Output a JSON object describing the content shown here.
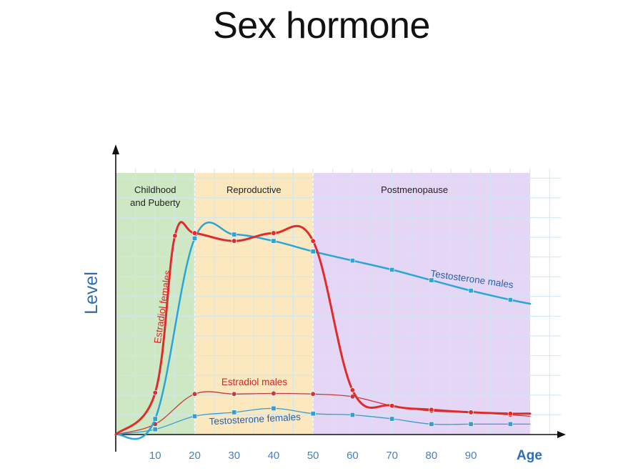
{
  "title": "Sex hormone",
  "chart_data": {
    "type": "line",
    "title": "Sex hormone",
    "xlabel": "Age",
    "ylabel": "Level",
    "xlim": [
      0,
      105
    ],
    "ylim": [
      0,
      100
    ],
    "x_ticks": [
      10,
      20,
      30,
      40,
      50,
      60,
      70,
      80,
      90
    ],
    "grid": true,
    "phases": [
      {
        "label_lines": [
          "Childhood",
          "and Puberty"
        ],
        "from": 0,
        "to": 20,
        "color": "#cfe8c4"
      },
      {
        "label_lines": [
          "Reproductive"
        ],
        "from": 20,
        "to": 50,
        "color": "#fbe8bf"
      },
      {
        "label_lines": [
          "Postmenopause"
        ],
        "from": 50,
        "to": 105,
        "color": "#e6d6f6"
      }
    ],
    "series": [
      {
        "name": "Estradiol females",
        "color": "#e02b2b",
        "width": 3,
        "x": [
          0,
          10,
          15,
          20,
          30,
          40,
          50,
          60,
          70,
          80,
          90,
          100,
          105
        ],
        "y": [
          0,
          16,
          76,
          77,
          74,
          77,
          74,
          17,
          11,
          9.5,
          8.5,
          8,
          8
        ]
      },
      {
        "name": "Testosterone males",
        "color": "#2aa5d8",
        "width": 2.5,
        "x": [
          0,
          10,
          20,
          30,
          40,
          50,
          60,
          70,
          80,
          90,
          100,
          105
        ],
        "y": [
          0,
          6,
          75,
          76.5,
          74,
          70,
          66.5,
          63,
          59,
          55,
          51.5,
          50
        ]
      },
      {
        "name": "Estradiol males",
        "color": "#c43a3a",
        "width": 1.3,
        "x": [
          0,
          10,
          20,
          30,
          40,
          50,
          60,
          70,
          80,
          90,
          100,
          105
        ],
        "y": [
          0,
          4,
          15.5,
          15.5,
          15.7,
          15.5,
          14.5,
          11,
          9,
          8.5,
          7.5,
          7
        ]
      },
      {
        "name": "Testosterone females",
        "color": "#3a9ccc",
        "width": 1.3,
        "x": [
          0,
          10,
          20,
          30,
          40,
          50,
          60,
          70,
          80,
          90,
          100,
          105
        ],
        "y": [
          0,
          2,
          7,
          8.5,
          10,
          8,
          7.5,
          6,
          4,
          4,
          4,
          4
        ]
      }
    ],
    "series_labels": [
      {
        "series": "Estradiol females",
        "text": "Estradiol females",
        "color": "#d42727"
      },
      {
        "series": "Testosterone males",
        "text": "Testosterone males",
        "color": "#2a5fa8"
      },
      {
        "series": "Estradiol males",
        "text": "Estradiol males",
        "color": "#d42727"
      },
      {
        "series": "Testosterone females",
        "text": "Testosterone females",
        "color": "#2a5fa8"
      }
    ]
  }
}
